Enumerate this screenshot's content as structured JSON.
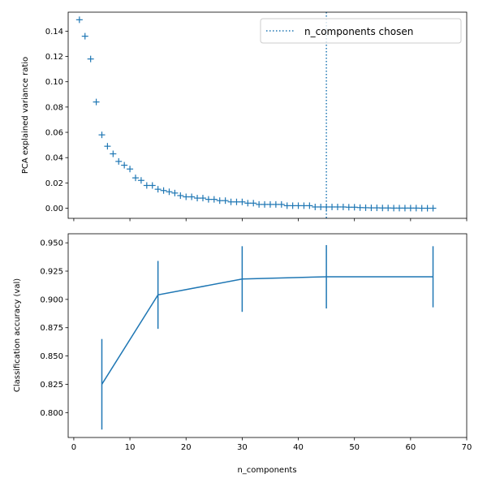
{
  "chart_data": [
    {
      "type": "scatter",
      "marker": "+",
      "ylabel": "PCA explained variance ratio",
      "xlim": [
        -1,
        70
      ],
      "ylim": [
        -0.008,
        0.155
      ],
      "y_ticks": [
        0.0,
        0.02,
        0.04,
        0.06,
        0.08,
        0.1,
        0.12,
        0.14
      ],
      "y_tick_labels": [
        "0.00",
        "0.02",
        "0.04",
        "0.06",
        "0.08",
        "0.10",
        "0.12",
        "0.14"
      ],
      "x_ticks": [
        0,
        10,
        20,
        30,
        40,
        50,
        60,
        70
      ],
      "x_tick_labels_shown": false,
      "legend": {
        "position": "top-right",
        "entries": [
          {
            "label": "n_components chosen",
            "style": "dotted"
          }
        ]
      },
      "vline": {
        "x": 45
      },
      "color": "#1f77b4",
      "series": [
        {
          "x": [
            1,
            2,
            3,
            4,
            5,
            6,
            7,
            8,
            9,
            10,
            11,
            12,
            13,
            14,
            15,
            16,
            17,
            18,
            19,
            20,
            21,
            22,
            23,
            24,
            25,
            26,
            27,
            28,
            29,
            30,
            31,
            32,
            33,
            34,
            35,
            36,
            37,
            38,
            39,
            40,
            41,
            42,
            43,
            44,
            45,
            46,
            47,
            48,
            49,
            50,
            51,
            52,
            53,
            54,
            55,
            56,
            57,
            58,
            59,
            60,
            61,
            62,
            63,
            64
          ],
          "y": [
            0.149,
            0.136,
            0.118,
            0.084,
            0.058,
            0.049,
            0.043,
            0.037,
            0.034,
            0.031,
            0.024,
            0.022,
            0.018,
            0.018,
            0.015,
            0.014,
            0.013,
            0.012,
            0.01,
            0.009,
            0.009,
            0.008,
            0.008,
            0.007,
            0.007,
            0.006,
            0.006,
            0.005,
            0.005,
            0.005,
            0.004,
            0.004,
            0.003,
            0.003,
            0.003,
            0.003,
            0.003,
            0.002,
            0.002,
            0.002,
            0.002,
            0.002,
            0.001,
            0.001,
            0.001,
            0.001,
            0.001,
            0.001,
            0.0008,
            0.0008,
            0.0005,
            0.0004,
            0.0003,
            0.0003,
            0.0002,
            0.0002,
            0.0001,
            0.0001,
            0.0001,
            0.0001,
            0.0001,
            0.0,
            0.0,
            0.0
          ]
        }
      ]
    },
    {
      "type": "line",
      "errorbars": true,
      "xlabel": "n_components",
      "ylabel": "Classification accuracy (val)",
      "xlim": [
        -1,
        70
      ],
      "ylim": [
        0.778,
        0.958
      ],
      "x_ticks": [
        0,
        10,
        20,
        30,
        40,
        50,
        60,
        70
      ],
      "x_tick_labels": [
        "0",
        "10",
        "20",
        "30",
        "40",
        "50",
        "60",
        "70"
      ],
      "y_ticks": [
        0.8,
        0.825,
        0.85,
        0.875,
        0.9,
        0.925,
        0.95
      ],
      "y_tick_labels": [
        "0.800",
        "0.825",
        "0.850",
        "0.875",
        "0.900",
        "0.925",
        "0.950"
      ],
      "color": "#1f77b4",
      "series": [
        {
          "x": [
            5,
            15,
            30,
            45,
            64
          ],
          "y": [
            0.825,
            0.904,
            0.918,
            0.92,
            0.92
          ],
          "yerr": [
            0.04,
            0.03,
            0.029,
            0.028,
            0.027
          ]
        }
      ]
    }
  ]
}
